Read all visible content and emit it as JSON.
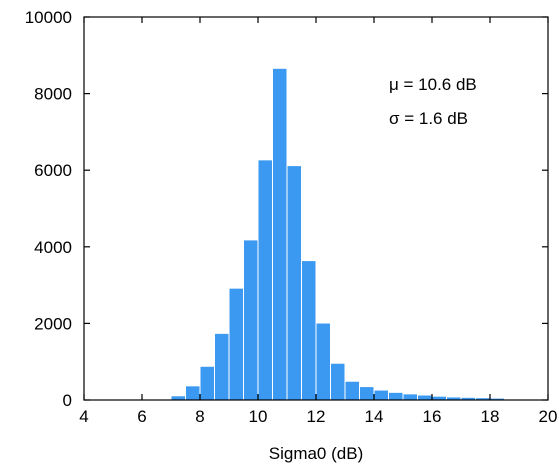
{
  "chart_data": {
    "type": "bar",
    "xlabel": "Sigma0 (dB)",
    "ylabel": "",
    "xlim": [
      4,
      20
    ],
    "ylim": [
      0,
      10000
    ],
    "xticks": [
      4,
      6,
      8,
      10,
      12,
      14,
      16,
      18,
      20
    ],
    "yticks": [
      0,
      2000,
      4000,
      6000,
      8000,
      10000
    ],
    "bin_width": 0.5,
    "bar_color": "#3b99f2",
    "grid": false,
    "annotations": [
      "μ = 10.6 dB",
      "σ = 1.6 dB"
    ],
    "bins": [
      {
        "x0": 6.5,
        "value": 10
      },
      {
        "x0": 7.0,
        "value": 110
      },
      {
        "x0": 7.5,
        "value": 370
      },
      {
        "x0": 8.0,
        "value": 880
      },
      {
        "x0": 8.5,
        "value": 1740
      },
      {
        "x0": 9.0,
        "value": 2920
      },
      {
        "x0": 9.5,
        "value": 4180
      },
      {
        "x0": 10.0,
        "value": 6270
      },
      {
        "x0": 10.5,
        "value": 8660
      },
      {
        "x0": 11.0,
        "value": 6120
      },
      {
        "x0": 11.5,
        "value": 3640
      },
      {
        "x0": 12.0,
        "value": 2010
      },
      {
        "x0": 12.5,
        "value": 960
      },
      {
        "x0": 13.0,
        "value": 490
      },
      {
        "x0": 13.5,
        "value": 350
      },
      {
        "x0": 14.0,
        "value": 260
      },
      {
        "x0": 14.5,
        "value": 200
      },
      {
        "x0": 15.0,
        "value": 160
      },
      {
        "x0": 15.5,
        "value": 130
      },
      {
        "x0": 16.0,
        "value": 100
      },
      {
        "x0": 16.5,
        "value": 80
      },
      {
        "x0": 17.0,
        "value": 70
      },
      {
        "x0": 17.5,
        "value": 60
      },
      {
        "x0": 18.0,
        "value": 50
      },
      {
        "x0": 18.5,
        "value": 20
      }
    ]
  }
}
